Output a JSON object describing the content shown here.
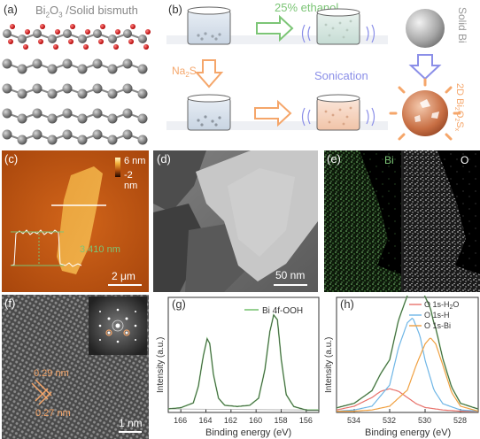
{
  "panels": {
    "a": {
      "label": "(a)",
      "title": "Bi2O3 /Solid bismuth"
    },
    "b": {
      "label": "(b)",
      "step1": "25% ethanol",
      "step2": "Na2S",
      "step3": "Sonication",
      "solid_bi": "Solid Bi",
      "product": "2D Bi2O2Sx"
    },
    "c": {
      "label": "(c)",
      "scale_max": "6 nm",
      "scale_min": "-2 nm",
      "height": "3.410 nm",
      "scalebar": "2 μm"
    },
    "d": {
      "label": "(d)",
      "scalebar": "50 nm"
    },
    "e": {
      "label": "(e)",
      "el1": "Bi",
      "el2": "O"
    },
    "f": {
      "label": "(f)",
      "d1": "0.29 nm",
      "d2": "0.27 nm",
      "scalebar": "1 nm"
    },
    "g": {
      "label": "(g)",
      "legend": "Bi 4f-OOH",
      "xlabel": "Binding energy (eV)",
      "ylabel": "Intensity (a.u.)",
      "xticks": [
        "166",
        "164",
        "162",
        "160",
        "158",
        "156"
      ]
    },
    "h": {
      "label": "(h)",
      "legend": [
        "O 1s-H2O",
        "O 1s-H",
        "O 1s-Bi"
      ],
      "xlabel": "Binding energy (eV)",
      "ylabel": "Intensity (a.u.)",
      "xticks": [
        "534",
        "532",
        "530",
        "528"
      ]
    }
  },
  "colors": {
    "green": "#7cc576",
    "orange": "#f5a66a",
    "blue": "#8b8fe8",
    "red": "#e8736c",
    "lightblue": "#6fb6e6",
    "gold": "#f0a040"
  },
  "chart_data": [
    {
      "type": "line",
      "title": "",
      "xlabel": "Binding energy (eV)",
      "ylabel": "Intensity (a.u.)",
      "xlim": [
        167,
        155
      ],
      "reverse_x": true,
      "series": [
        {
          "name": "Bi 4f-OOH",
          "x": [
            167,
            166,
            165,
            164.6,
            164.2,
            163.9,
            163.7,
            163.4,
            163,
            162.5,
            161.5,
            160.5,
            159.8,
            159.3,
            158.9,
            158.6,
            158.3,
            158,
            157.6,
            157,
            156,
            155
          ],
          "y": [
            0.03,
            0.04,
            0.08,
            0.22,
            0.48,
            0.62,
            0.58,
            0.32,
            0.12,
            0.06,
            0.05,
            0.06,
            0.12,
            0.36,
            0.68,
            0.82,
            0.78,
            0.45,
            0.15,
            0.05,
            0.02,
            0.02
          ]
        }
      ]
    },
    {
      "type": "line",
      "title": "",
      "xlabel": "Binding energy (eV)",
      "ylabel": "Intensity (a.u.)",
      "xlim": [
        535,
        527
      ],
      "reverse_x": true,
      "series": [
        {
          "name": "O 1s-H2O",
          "x": [
            535,
            534,
            533,
            532.5,
            532,
            531.5,
            531,
            530.5,
            530,
            529,
            528,
            527
          ],
          "y": [
            0.02,
            0.05,
            0.12,
            0.17,
            0.19,
            0.17,
            0.12,
            0.07,
            0.04,
            0.02,
            0.01,
            0.01
          ]
        },
        {
          "name": "O 1s-H",
          "x": [
            535,
            534,
            533,
            532,
            531.5,
            531,
            530.7,
            530.3,
            530,
            529.5,
            529,
            528,
            527
          ],
          "y": [
            0.01,
            0.02,
            0.05,
            0.22,
            0.52,
            0.72,
            0.76,
            0.62,
            0.42,
            0.18,
            0.07,
            0.02,
            0.01
          ]
        },
        {
          "name": "O 1s-Bi",
          "x": [
            535,
            534,
            533,
            532,
            531,
            530.5,
            530,
            529.7,
            529.4,
            529,
            528.5,
            528,
            527
          ],
          "y": [
            0.01,
            0.01,
            0.02,
            0.05,
            0.18,
            0.38,
            0.55,
            0.6,
            0.55,
            0.38,
            0.16,
            0.05,
            0.01
          ]
        }
      ]
    }
  ]
}
